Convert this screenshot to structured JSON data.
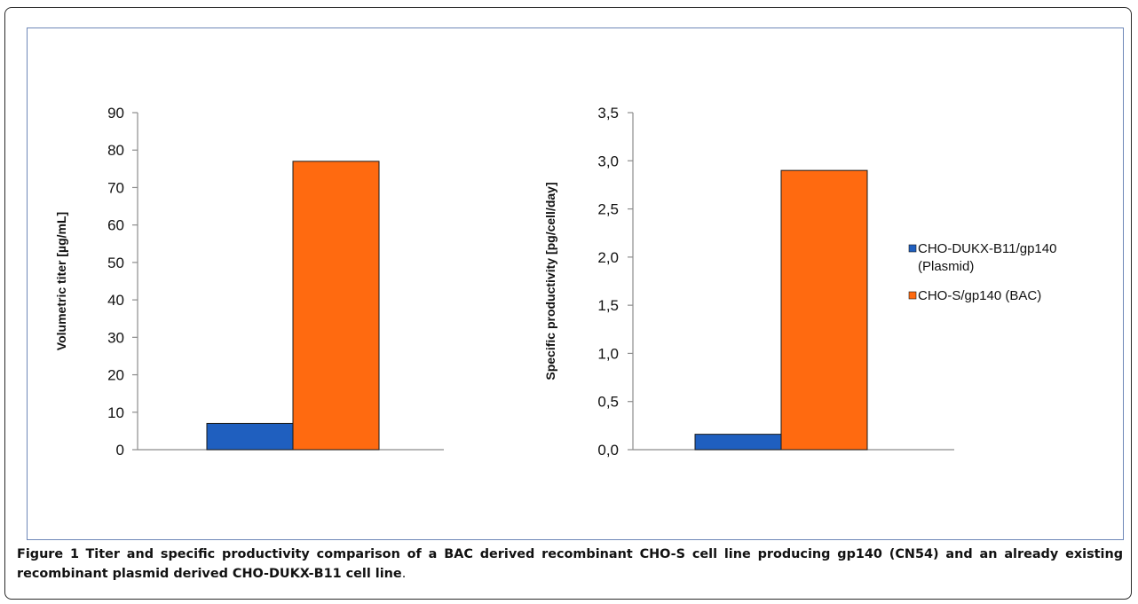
{
  "chart_data": [
    {
      "type": "bar",
      "categories": [
        ""
      ],
      "series": [
        {
          "name": "CHO-DUKX-B11/gp140 (Plasmid)",
          "values": [
            7
          ],
          "color": "#1f5fbf"
        },
        {
          "name": "CHO-S/gp140 (BAC)",
          "values": [
            77
          ],
          "color": "#ff6a10"
        }
      ],
      "ylabel": "Volumetric titer [µg/mL]",
      "ylim": [
        0,
        90
      ],
      "yticks": [
        "0",
        "10",
        "20",
        "30",
        "40",
        "50",
        "60",
        "70",
        "80",
        "90"
      ],
      "ytick_values": [
        0,
        10,
        20,
        30,
        40,
        50,
        60,
        70,
        80,
        90
      ],
      "grid": false
    },
    {
      "type": "bar",
      "categories": [
        ""
      ],
      "series": [
        {
          "name": "CHO-DUKX-B11/gp140 (Plasmid)",
          "values": [
            0.16
          ],
          "color": "#1f5fbf"
        },
        {
          "name": "CHO-S/gp140 (BAC)",
          "values": [
            2.9
          ],
          "color": "#ff6a10"
        }
      ],
      "ylabel": "Specific productivity [pg/cell/day]",
      "ylim": [
        0,
        3.5
      ],
      "yticks": [
        "0,0",
        "0,5",
        "1,0",
        "1,5",
        "2,0",
        "2,5",
        "3,0",
        "3,5"
      ],
      "ytick_values": [
        0,
        0.5,
        1.0,
        1.5,
        2.0,
        2.5,
        3.0,
        3.5
      ],
      "grid": false,
      "legend": {
        "placement": "right",
        "entries": [
          {
            "lines": [
              "CHO-DUKX-B11/gp140",
              "(Plasmid)"
            ],
            "color": "#1f5fbf"
          },
          {
            "lines": [
              "CHO-S/gp140 (BAC)"
            ],
            "color": "#ff6a10"
          }
        ]
      }
    }
  ],
  "caption": {
    "label": "Figure 1",
    "text": "Titer and specific productivity comparison of a BAC derived recombinant CHO-S cell line producing gp140 (CN54) and an already existing recombinant plasmid derived CHO-DUKX-B11 cell line",
    "end": "."
  }
}
